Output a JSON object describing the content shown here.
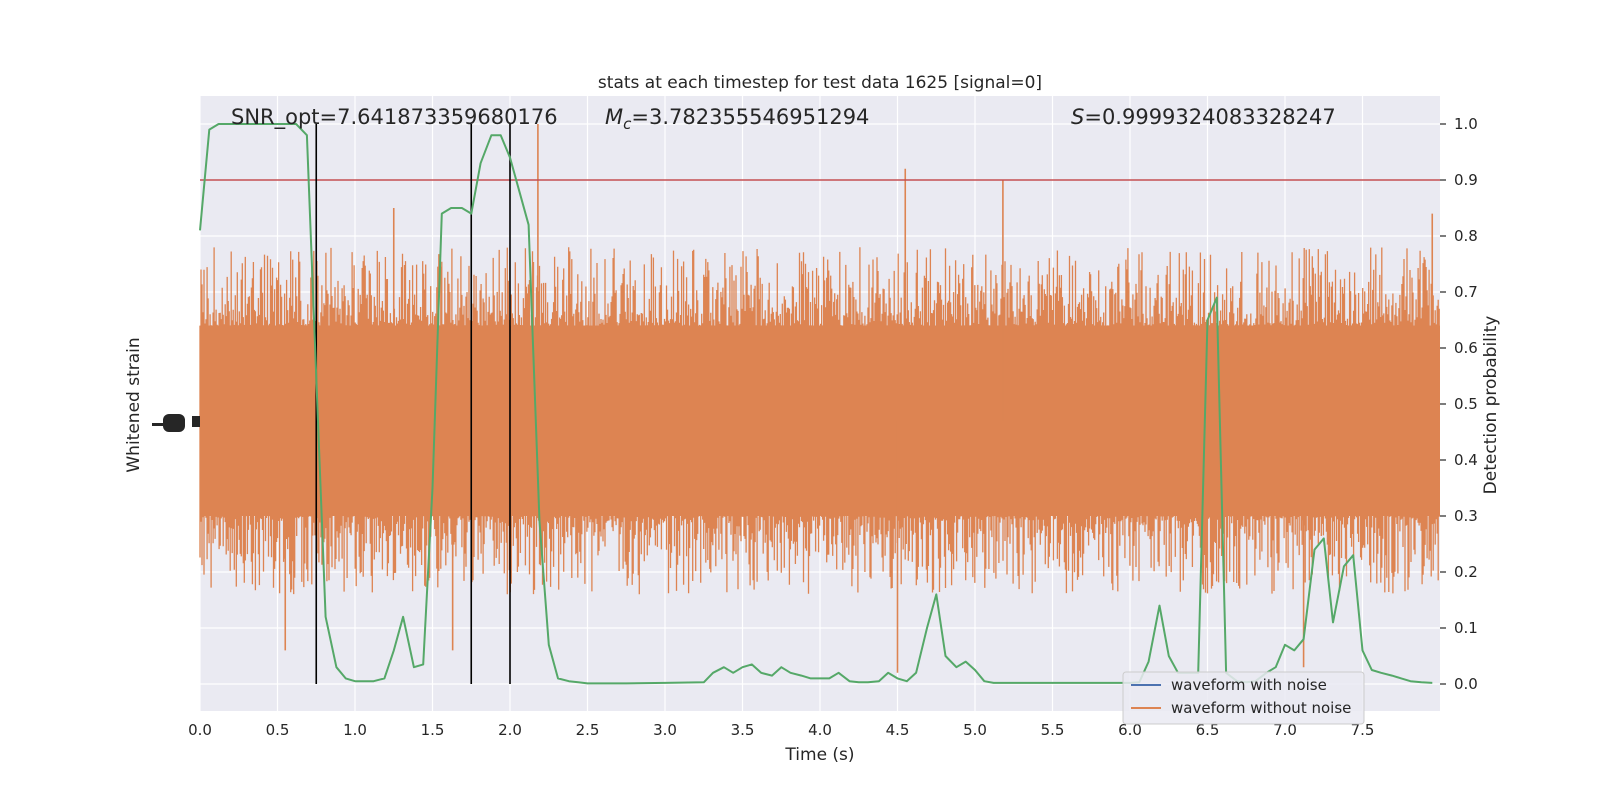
{
  "chart_data": {
    "type": "line",
    "title": "stats at each timestep for test data 1625 [signal=0]",
    "xlabel": "Time (s)",
    "ylabel_left": "Whitened strain",
    "ylabel_right": "Detection probability",
    "xlim": [
      0.0,
      8.0
    ],
    "ylim_right": [
      -0.05,
      1.05
    ],
    "x_ticks": [
      "0.0",
      "0.5",
      "1.0",
      "1.5",
      "2.0",
      "2.5",
      "3.0",
      "3.5",
      "4.0",
      "4.5",
      "5.0",
      "5.5",
      "6.0",
      "6.5",
      "7.0",
      "7.5"
    ],
    "x_tick_values": [
      0.0,
      0.5,
      1.0,
      1.5,
      2.0,
      2.5,
      3.0,
      3.5,
      4.0,
      4.5,
      5.0,
      5.5,
      6.0,
      6.5,
      7.0,
      7.5
    ],
    "y_right_ticks": [
      "0.0",
      "0.1",
      "0.2",
      "0.3",
      "0.4",
      "0.5",
      "0.6",
      "0.7",
      "0.8",
      "0.9",
      "1.0"
    ],
    "y_right_tick_values": [
      0.0,
      0.1,
      0.2,
      0.3,
      0.4,
      0.5,
      0.6,
      0.7,
      0.8,
      0.9,
      1.0
    ],
    "grid": true,
    "annotations": {
      "snr": "SNR_opt=7.641873359680176",
      "mc_symbol": "M",
      "mc_sub": "c",
      "mc_value": "=3.782355546951294",
      "s_symbol": "S",
      "s_value": "=0.9999324083328247"
    },
    "threshold": {
      "value": 0.9,
      "color": "#c44e52"
    },
    "vertical_lines": [
      0.75,
      1.75,
      2.0
    ],
    "legend": {
      "placement": "lower-right",
      "entries": [
        {
          "label": "waveform with noise",
          "color": "#4c72b0"
        },
        {
          "label": "waveform without noise",
          "color": "#dd8452"
        }
      ]
    },
    "noise_series": {
      "name": "waveform without noise",
      "color": "#dd8452",
      "center": 0.47,
      "core_half_width": 0.17,
      "typical_max": 0.78,
      "typical_min": 0.16,
      "spikes": [
        {
          "x": 2.18,
          "y": 1.0
        },
        {
          "x": 4.55,
          "y": 0.92
        },
        {
          "x": 5.18,
          "y": 0.9
        },
        {
          "x": 1.25,
          "y": 0.85
        },
        {
          "x": 7.95,
          "y": 0.84
        },
        {
          "x": 1.63,
          "y": 0.06
        },
        {
          "x": 4.5,
          "y": 0.02
        },
        {
          "x": 7.12,
          "y": 0.03
        },
        {
          "x": 0.55,
          "y": 0.06
        }
      ]
    },
    "probability_series": {
      "name": "Detection probability",
      "color": "#55a868",
      "x": [
        0.0,
        0.06,
        0.12,
        0.19,
        0.25,
        0.31,
        0.38,
        0.44,
        0.5,
        0.56,
        0.62,
        0.69,
        0.74,
        0.81,
        0.88,
        0.94,
        1.0,
        1.06,
        1.12,
        1.19,
        1.25,
        1.31,
        1.38,
        1.44,
        1.5,
        1.56,
        1.62,
        1.69,
        1.75,
        1.81,
        1.88,
        1.94,
        2.0,
        2.06,
        2.12,
        2.19,
        2.25,
        2.31,
        2.38,
        2.44,
        2.5,
        2.75,
        3.0,
        3.25,
        3.31,
        3.38,
        3.44,
        3.5,
        3.56,
        3.62,
        3.69,
        3.75,
        3.81,
        3.88,
        3.94,
        4.0,
        4.06,
        4.12,
        4.19,
        4.25,
        4.31,
        4.38,
        4.44,
        4.5,
        4.56,
        4.62,
        4.69,
        4.75,
        4.81,
        4.88,
        4.94,
        5.0,
        5.06,
        5.12,
        5.19,
        5.25,
        5.5,
        5.75,
        6.0,
        6.06,
        6.12,
        6.19,
        6.25,
        6.31,
        6.38,
        6.44,
        6.5,
        6.56,
        6.62,
        6.69,
        6.75,
        6.81,
        6.88,
        6.94,
        7.0,
        7.06,
        7.12,
        7.19,
        7.25,
        7.31,
        7.38,
        7.44,
        7.5,
        7.56,
        7.62,
        7.69,
        7.75,
        7.81,
        7.88,
        7.95
      ],
      "y": [
        0.81,
        0.99,
        1.0,
        1.0,
        1.0,
        1.0,
        1.0,
        1.0,
        1.0,
        1.0,
        1.0,
        0.98,
        0.62,
        0.12,
        0.03,
        0.01,
        0.005,
        0.005,
        0.005,
        0.01,
        0.06,
        0.12,
        0.03,
        0.035,
        0.35,
        0.84,
        0.85,
        0.85,
        0.84,
        0.93,
        0.98,
        0.98,
        0.94,
        0.88,
        0.82,
        0.29,
        0.07,
        0.01,
        0.005,
        0.003,
        0.001,
        0.001,
        0.002,
        0.003,
        0.02,
        0.03,
        0.02,
        0.03,
        0.035,
        0.02,
        0.015,
        0.03,
        0.02,
        0.015,
        0.01,
        0.01,
        0.01,
        0.02,
        0.005,
        0.003,
        0.003,
        0.005,
        0.02,
        0.01,
        0.005,
        0.02,
        0.1,
        0.16,
        0.05,
        0.03,
        0.04,
        0.025,
        0.005,
        0.002,
        0.002,
        0.002,
        0.002,
        0.002,
        0.002,
        0.003,
        0.04,
        0.14,
        0.05,
        0.02,
        0.02,
        0.02,
        0.65,
        0.69,
        0.02,
        0.005,
        0.003,
        0.005,
        0.02,
        0.03,
        0.07,
        0.06,
        0.08,
        0.24,
        0.26,
        0.11,
        0.21,
        0.23,
        0.06,
        0.025,
        0.02,
        0.015,
        0.01,
        0.005,
        0.003,
        0.002
      ]
    }
  }
}
